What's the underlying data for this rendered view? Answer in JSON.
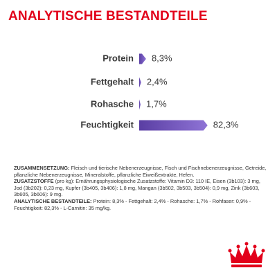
{
  "chart_data": {
    "type": "bar",
    "orientation": "horizontal",
    "title": "ANALYTISCHE BESTANDTEILE",
    "categories": [
      "Protein",
      "Fettgehalt",
      "Rohasche",
      "Feuchtigkeit"
    ],
    "values": [
      8.3,
      2.4,
      1.7,
      82.3
    ],
    "value_labels": [
      "8,3%",
      "2,4%",
      "1,7%",
      "82,3%"
    ],
    "color": "#6f52b8"
  },
  "composition": {
    "paragraphs": [
      {
        "heading": "ZUSAMMENSETZUNG:",
        "text": "Fleisch und tierische Nebenerzeugnisse, Fisch und Fischnebenerzeugnisse, Getreide, pflanzliche Nebenerzeugnisse, Mineralstoffe, pflanzliche Eiweißextrakte, Hefen."
      },
      {
        "heading": "ZUSATZSTOFFE",
        "text": "(pro kg): Ernährungsphysiologische Zusatzstoffe: Vitamin D3: 110 IE, Eisen (3b103): 3 mg, Jod (3b202): 0,23 mg, Kupfer (3b405, 3b406): 1,8 mg, Mangan (3b502, 3b503, 3b504): 0,9 mg, Zink (3b603, 3b605, 3b606): 9 mg."
      },
      {
        "heading": "ANALYTISCHE BESTANDTEILE:",
        "text": "Protein: 8,3% - Fettgehalt: 2,4% - Rohasche: 1,7% - Rohfaser: 0,9% - Feuchtigkeit: 82,3% - L-Carnitin: 35 mg/kg."
      }
    ]
  }
}
